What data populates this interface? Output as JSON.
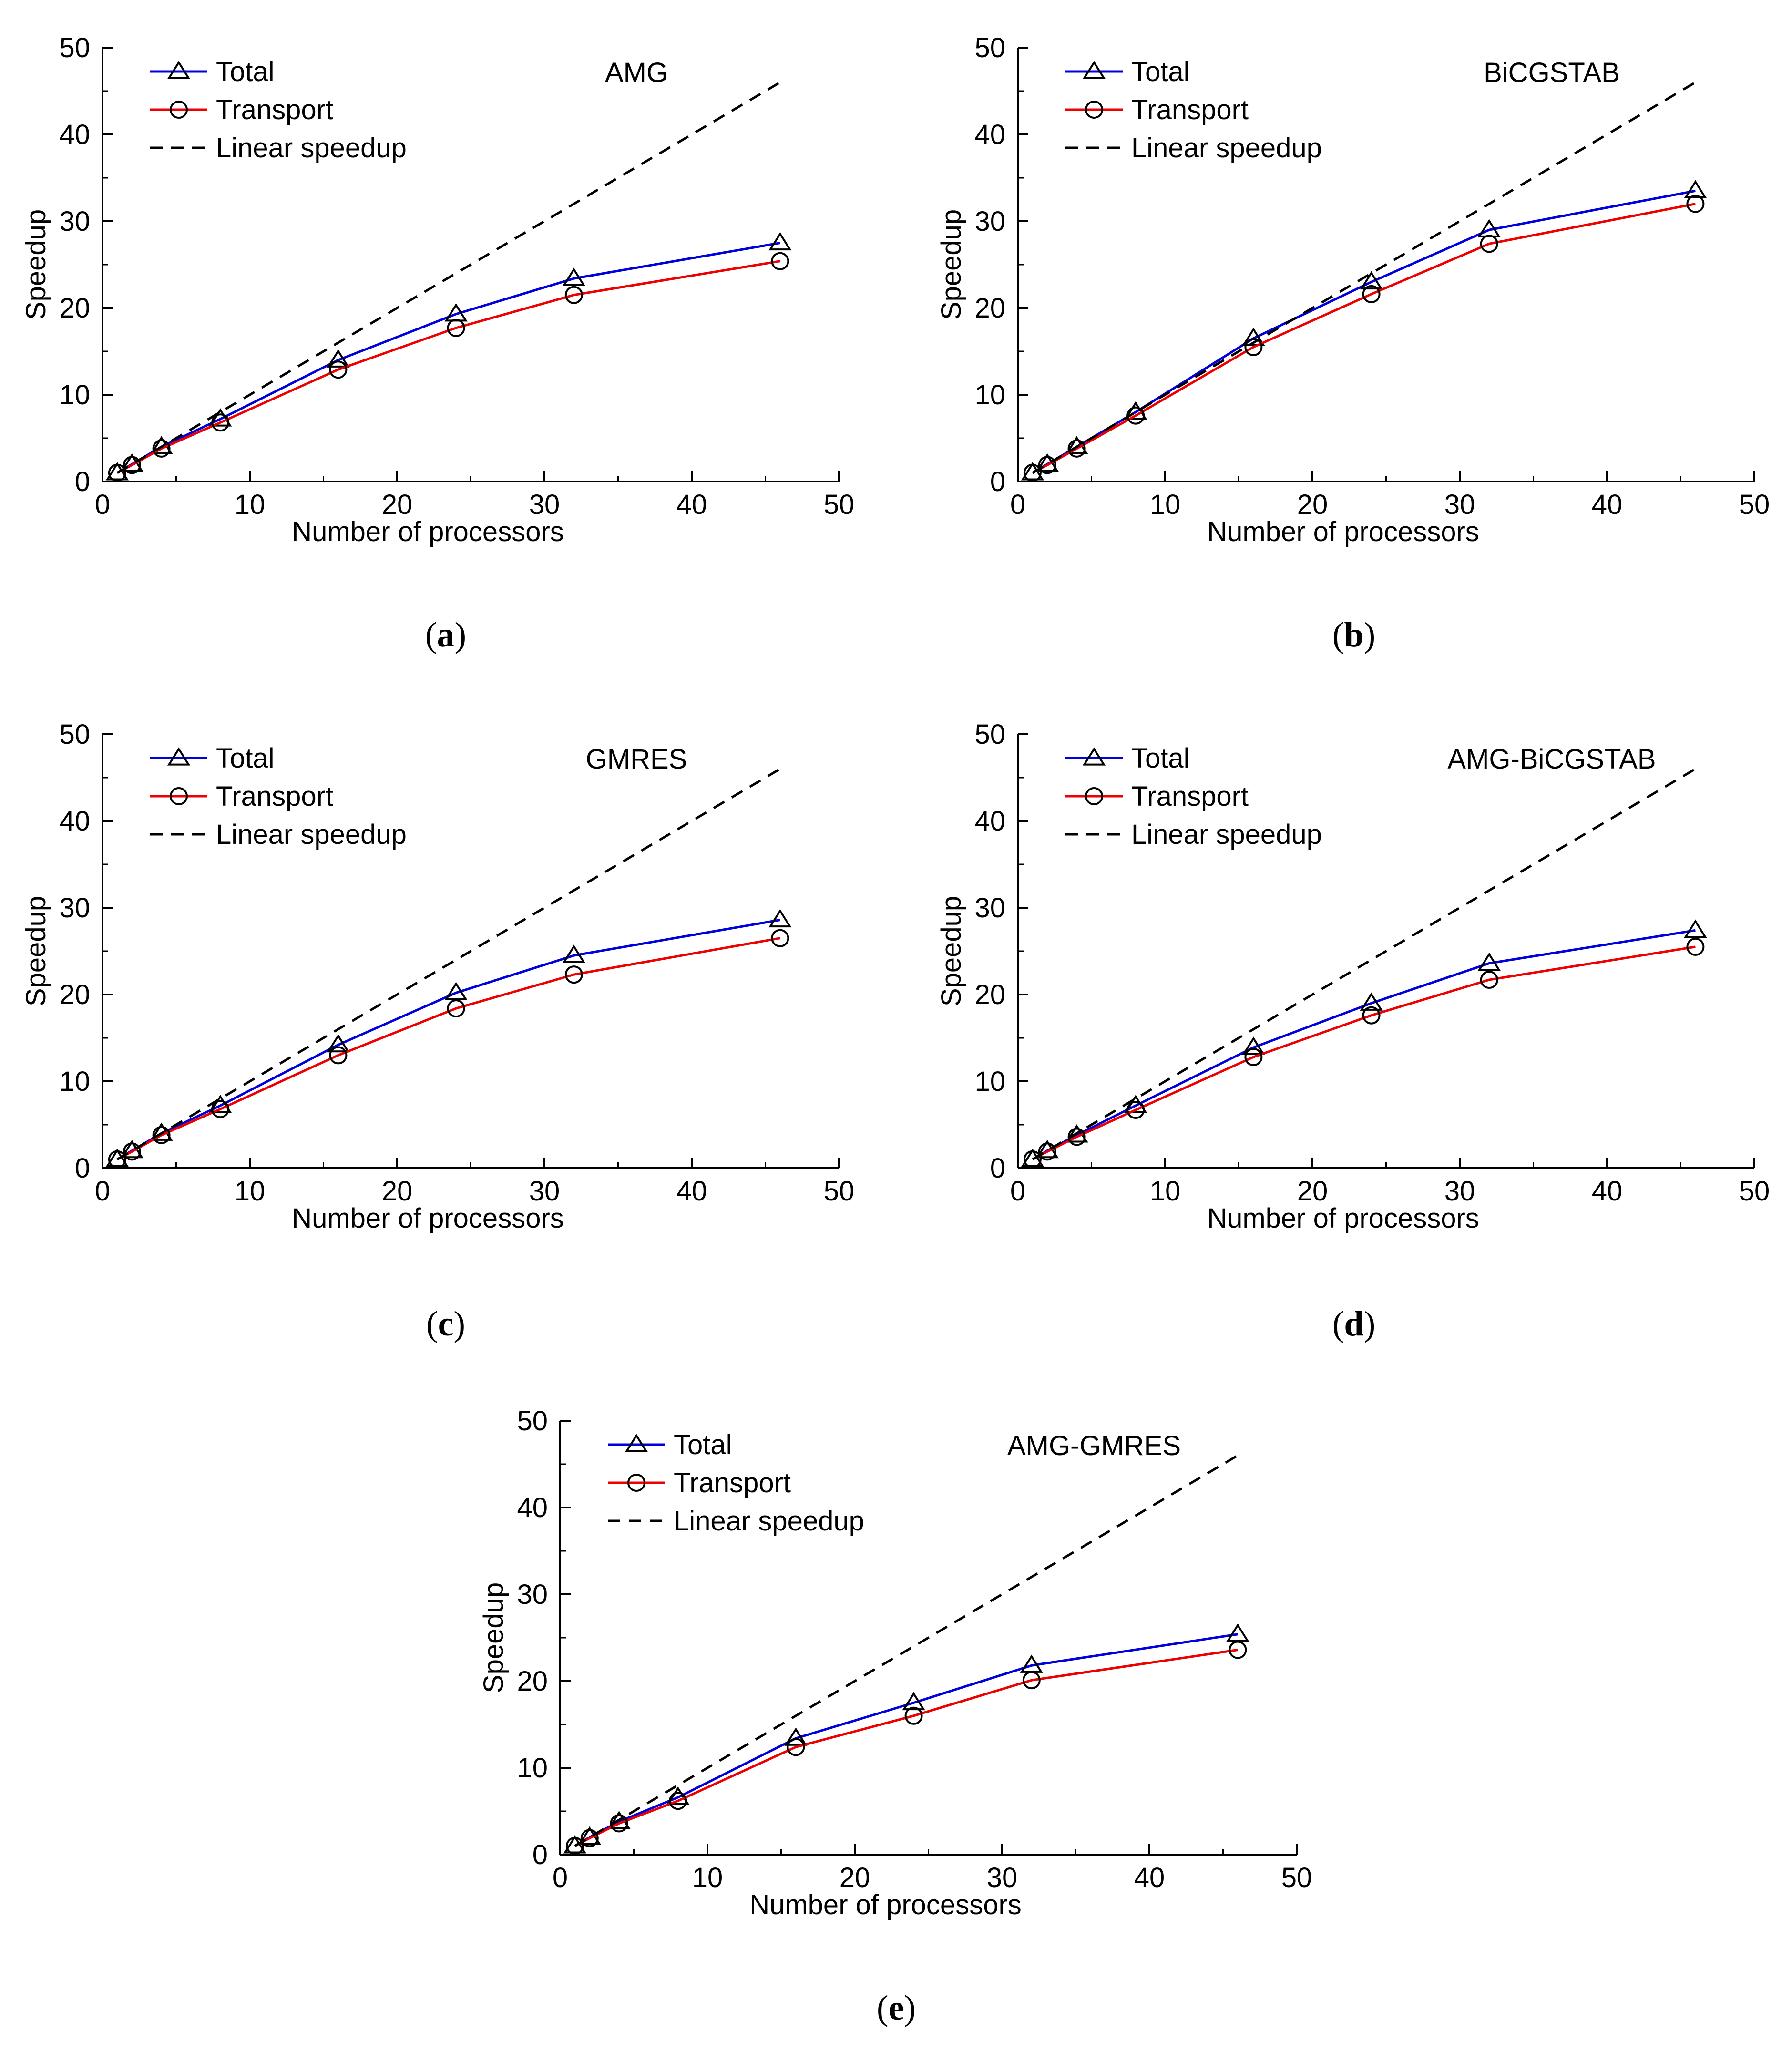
{
  "figure": {
    "captions": [
      "a",
      "b",
      "c",
      "d",
      "e"
    ]
  },
  "colors": {
    "total": "#0000dd",
    "transport": "#ee0000",
    "linear": "#000000"
  },
  "chart_data": [
    {
      "type": "line",
      "label": "(a)",
      "caption_letter": "a",
      "title": "AMG",
      "xlabel": "Number of processors",
      "ylabel": "Speedup",
      "xlim": [
        0,
        50
      ],
      "ylim": [
        0,
        50
      ],
      "xticks": [
        0,
        10,
        20,
        30,
        40,
        50
      ],
      "yticks": [
        0,
        10,
        20,
        30,
        40,
        50
      ],
      "legend_position": "top-left",
      "x": [
        1,
        2,
        4,
        8,
        16,
        24,
        32,
        46
      ],
      "series": [
        {
          "name": "Total",
          "marker": "triangle",
          "values": [
            1.0,
            2.0,
            4.0,
            7.2,
            14.0,
            19.3,
            23.4,
            27.5
          ]
        },
        {
          "name": "Transport",
          "marker": "circle",
          "values": [
            1.0,
            1.9,
            3.8,
            6.8,
            12.9,
            17.7,
            21.5,
            25.4
          ]
        },
        {
          "name": "Linear speedup",
          "marker": "none",
          "style": "dashed",
          "x": [
            1,
            46
          ],
          "values": [
            1,
            46
          ]
        }
      ]
    },
    {
      "type": "line",
      "label": "(b)",
      "caption_letter": "b",
      "title": "BiCGSTAB",
      "xlabel": "Number of processors",
      "ylabel": "Speedup",
      "xlim": [
        0,
        50
      ],
      "ylim": [
        0,
        50
      ],
      "xticks": [
        0,
        10,
        20,
        30,
        40,
        50
      ],
      "yticks": [
        0,
        10,
        20,
        30,
        40,
        50
      ],
      "legend_position": "top-left",
      "x": [
        1,
        2,
        4,
        8,
        16,
        24,
        32,
        46
      ],
      "series": [
        {
          "name": "Total",
          "marker": "triangle",
          "values": [
            1.0,
            2.0,
            4.0,
            8.0,
            16.5,
            23.0,
            29.0,
            33.5
          ]
        },
        {
          "name": "Transport",
          "marker": "circle",
          "values": [
            1.0,
            1.9,
            3.8,
            7.6,
            15.5,
            21.6,
            27.4,
            32.0
          ]
        },
        {
          "name": "Linear speedup",
          "marker": "none",
          "style": "dashed",
          "x": [
            1,
            46
          ],
          "values": [
            1,
            46
          ]
        }
      ]
    },
    {
      "type": "line",
      "label": "(c)",
      "caption_letter": "c",
      "title": "GMRES",
      "xlabel": "Number of processors",
      "ylabel": "Speedup",
      "xlim": [
        0,
        50
      ],
      "ylim": [
        0,
        50
      ],
      "xticks": [
        0,
        10,
        20,
        30,
        40,
        50
      ],
      "yticks": [
        0,
        10,
        20,
        30,
        40,
        50
      ],
      "legend_position": "top-left",
      "x": [
        1,
        2,
        4,
        8,
        16,
        24,
        32,
        46
      ],
      "series": [
        {
          "name": "Total",
          "marker": "triangle",
          "values": [
            1.0,
            2.0,
            4.0,
            7.2,
            14.2,
            20.2,
            24.5,
            28.6
          ]
        },
        {
          "name": "Transport",
          "marker": "circle",
          "values": [
            1.0,
            1.9,
            3.8,
            6.8,
            13.0,
            18.4,
            22.3,
            26.5
          ]
        },
        {
          "name": "Linear speedup",
          "marker": "none",
          "style": "dashed",
          "x": [
            1,
            46
          ],
          "values": [
            1,
            46
          ]
        }
      ]
    },
    {
      "type": "line",
      "label": "(d)",
      "caption_letter": "d",
      "title": "AMG-BiCGSTAB",
      "xlabel": "Number of processors",
      "ylabel": "Speedup",
      "xlim": [
        0,
        50
      ],
      "ylim": [
        0,
        50
      ],
      "xticks": [
        0,
        10,
        20,
        30,
        40,
        50
      ],
      "yticks": [
        0,
        10,
        20,
        30,
        40,
        50
      ],
      "legend_position": "top-left",
      "x": [
        1,
        2,
        4,
        8,
        16,
        24,
        32,
        46
      ],
      "series": [
        {
          "name": "Total",
          "marker": "triangle",
          "values": [
            1.0,
            2.0,
            3.8,
            7.2,
            13.9,
            19.0,
            23.6,
            27.4
          ]
        },
        {
          "name": "Transport",
          "marker": "circle",
          "values": [
            1.0,
            1.9,
            3.6,
            6.7,
            12.8,
            17.6,
            21.7,
            25.5
          ]
        },
        {
          "name": "Linear speedup",
          "marker": "none",
          "style": "dashed",
          "x": [
            1,
            46
          ],
          "values": [
            1,
            46
          ]
        }
      ]
    },
    {
      "type": "line",
      "label": "(e)",
      "caption_letter": "e",
      "title": "AMG-GMRES",
      "xlabel": "Number of processors",
      "ylabel": "Speedup",
      "xlim": [
        0,
        50
      ],
      "ylim": [
        0,
        50
      ],
      "xticks": [
        0,
        10,
        20,
        30,
        40,
        50
      ],
      "yticks": [
        0,
        10,
        20,
        30,
        40,
        50
      ],
      "legend_position": "top-left",
      "x": [
        1,
        2,
        4,
        8,
        16,
        24,
        32,
        46
      ],
      "series": [
        {
          "name": "Total",
          "marker": "triangle",
          "values": [
            1.0,
            2.0,
            3.8,
            6.6,
            13.4,
            17.5,
            21.8,
            25.4
          ]
        },
        {
          "name": "Transport",
          "marker": "circle",
          "values": [
            1.0,
            1.9,
            3.6,
            6.2,
            12.4,
            16.0,
            20.1,
            23.6
          ]
        },
        {
          "name": "Linear speedup",
          "marker": "none",
          "style": "dashed",
          "x": [
            1,
            46
          ],
          "values": [
            1,
            46
          ]
        }
      ]
    }
  ]
}
